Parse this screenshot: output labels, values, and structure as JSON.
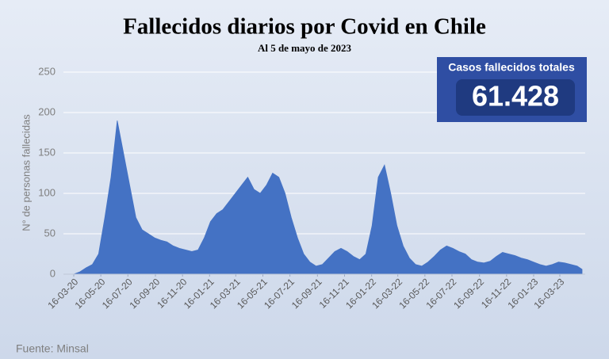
{
  "chart_data": {
    "type": "area",
    "title": "Fallecidos diarios por Covid en Chile",
    "subtitle": "Al 5 de mayo de 2023",
    "ylabel": "N° de personas fallecidas",
    "total_box": {
      "label": "Casos fallecidos totales",
      "value": "61.428"
    },
    "source": "Fuente: Minsal",
    "color": "#4472c4",
    "grid": true,
    "x": [
      "2020-03-16",
      "2020-03-30",
      "2020-04-13",
      "2020-04-27",
      "2020-05-11",
      "2020-05-25",
      "2020-06-08",
      "2020-06-22",
      "2020-07-06",
      "2020-07-20",
      "2020-08-03",
      "2020-08-17",
      "2020-08-31",
      "2020-09-14",
      "2020-09-28",
      "2020-10-12",
      "2020-10-26",
      "2020-11-09",
      "2020-11-23",
      "2020-12-07",
      "2020-12-21",
      "2021-01-04",
      "2021-01-18",
      "2021-02-01",
      "2021-02-15",
      "2021-03-01",
      "2021-03-15",
      "2021-03-29",
      "2021-04-12",
      "2021-04-26",
      "2021-05-10",
      "2021-05-24",
      "2021-06-07",
      "2021-06-21",
      "2021-07-05",
      "2021-07-19",
      "2021-08-02",
      "2021-08-16",
      "2021-08-30",
      "2021-09-13",
      "2021-09-27",
      "2021-10-11",
      "2021-10-25",
      "2021-11-08",
      "2021-11-22",
      "2021-12-06",
      "2021-12-20",
      "2022-01-03",
      "2022-01-17",
      "2022-01-31",
      "2022-02-14",
      "2022-02-28",
      "2022-03-14",
      "2022-03-28",
      "2022-04-11",
      "2022-04-25",
      "2022-05-09",
      "2022-05-23",
      "2022-06-06",
      "2022-06-20",
      "2022-07-04",
      "2022-07-18",
      "2022-08-01",
      "2022-08-15",
      "2022-08-29",
      "2022-09-12",
      "2022-09-26",
      "2022-10-10",
      "2022-10-24",
      "2022-11-07",
      "2022-11-21",
      "2022-12-05",
      "2022-12-19",
      "2023-01-02",
      "2023-01-16",
      "2023-01-30",
      "2023-02-13",
      "2023-02-27",
      "2023-03-13",
      "2023-03-27",
      "2023-04-10",
      "2023-04-24",
      "2023-05-05"
    ],
    "values": [
      0,
      3,
      8,
      12,
      25,
      70,
      120,
      190,
      150,
      110,
      70,
      55,
      50,
      45,
      42,
      40,
      35,
      32,
      30,
      28,
      30,
      45,
      65,
      75,
      80,
      90,
      100,
      110,
      120,
      105,
      100,
      110,
      125,
      120,
      100,
      70,
      45,
      25,
      15,
      10,
      12,
      20,
      28,
      32,
      28,
      22,
      18,
      25,
      60,
      120,
      135,
      100,
      60,
      35,
      20,
      12,
      10,
      15,
      22,
      30,
      35,
      32,
      28,
      25,
      18,
      15,
      14,
      16,
      22,
      27,
      25,
      23,
      20,
      18,
      15,
      12,
      10,
      12,
      15,
      14,
      12,
      10,
      6
    ],
    "xlim": [
      "2020-03-16",
      "2023-05-05"
    ],
    "xticks": [
      {
        "value": "2020-03-16",
        "label": "16-03-20"
      },
      {
        "value": "2020-05-16",
        "label": "16-05-20"
      },
      {
        "value": "2020-07-16",
        "label": "16-07-20"
      },
      {
        "value": "2020-09-16",
        "label": "16-09-20"
      },
      {
        "value": "2020-11-16",
        "label": "16-11-20"
      },
      {
        "value": "2021-01-16",
        "label": "16-01-21"
      },
      {
        "value": "2021-03-16",
        "label": "16-03-21"
      },
      {
        "value": "2021-05-16",
        "label": "16-05-21"
      },
      {
        "value": "2021-07-16",
        "label": "16-07-21"
      },
      {
        "value": "2021-09-16",
        "label": "16-09-21"
      },
      {
        "value": "2021-11-16",
        "label": "16-11-21"
      },
      {
        "value": "2022-01-16",
        "label": "16-01-22"
      },
      {
        "value": "2022-03-16",
        "label": "16-03-22"
      },
      {
        "value": "2022-05-16",
        "label": "16-05-22"
      },
      {
        "value": "2022-07-16",
        "label": "16-07-22"
      },
      {
        "value": "2022-09-16",
        "label": "16-09-22"
      },
      {
        "value": "2022-11-16",
        "label": "16-11-22"
      },
      {
        "value": "2023-01-16",
        "label": "16-01-23"
      },
      {
        "value": "2023-03-16",
        "label": "16-03-23"
      }
    ],
    "ylim": [
      0,
      250
    ],
    "yticks": [
      0,
      50,
      100,
      150,
      200,
      250
    ]
  }
}
